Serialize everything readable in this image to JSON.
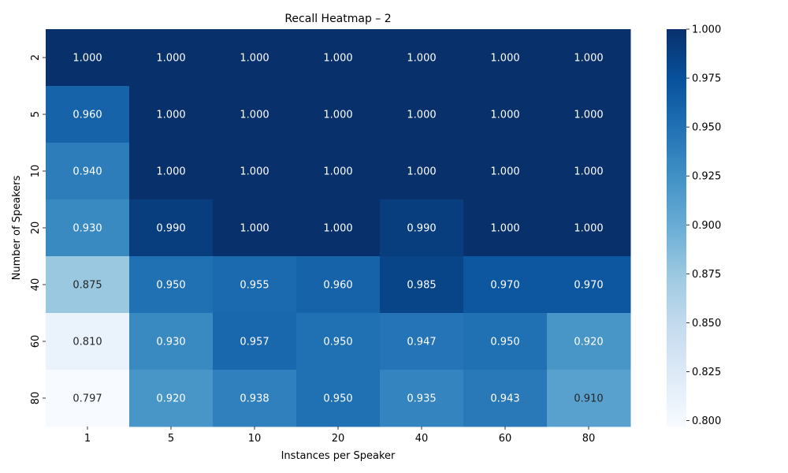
{
  "chart_data": {
    "type": "heatmap",
    "title": "Recall Heatmap – 2",
    "xlabel": "Instances per Speaker",
    "ylabel": "Number of Speakers",
    "x_categories": [
      "1",
      "5",
      "10",
      "20",
      "40",
      "60",
      "80"
    ],
    "y_categories": [
      "2",
      "5",
      "10",
      "20",
      "40",
      "60",
      "80"
    ],
    "values": [
      [
        1.0,
        1.0,
        1.0,
        1.0,
        1.0,
        1.0,
        1.0
      ],
      [
        0.96,
        1.0,
        1.0,
        1.0,
        1.0,
        1.0,
        1.0
      ],
      [
        0.94,
        1.0,
        1.0,
        1.0,
        1.0,
        1.0,
        1.0
      ],
      [
        0.93,
        0.99,
        1.0,
        1.0,
        0.99,
        1.0,
        1.0
      ],
      [
        0.875,
        0.95,
        0.955,
        0.96,
        0.985,
        0.97,
        0.97
      ],
      [
        0.81,
        0.93,
        0.957,
        0.95,
        0.947,
        0.95,
        0.92
      ],
      [
        0.797,
        0.92,
        0.938,
        0.95,
        0.935,
        0.943,
        0.91
      ]
    ],
    "value_format": "3 decimals",
    "colormap": "Blues",
    "color_range": [
      0.797,
      1.0
    ],
    "colorbar_ticks": [
      "0.800",
      "0.825",
      "0.850",
      "0.875",
      "0.900",
      "0.925",
      "0.950",
      "0.975",
      "1.000"
    ],
    "annotation_colors": {
      "on_dark": "#ffffff",
      "on_light": "#262626"
    }
  }
}
